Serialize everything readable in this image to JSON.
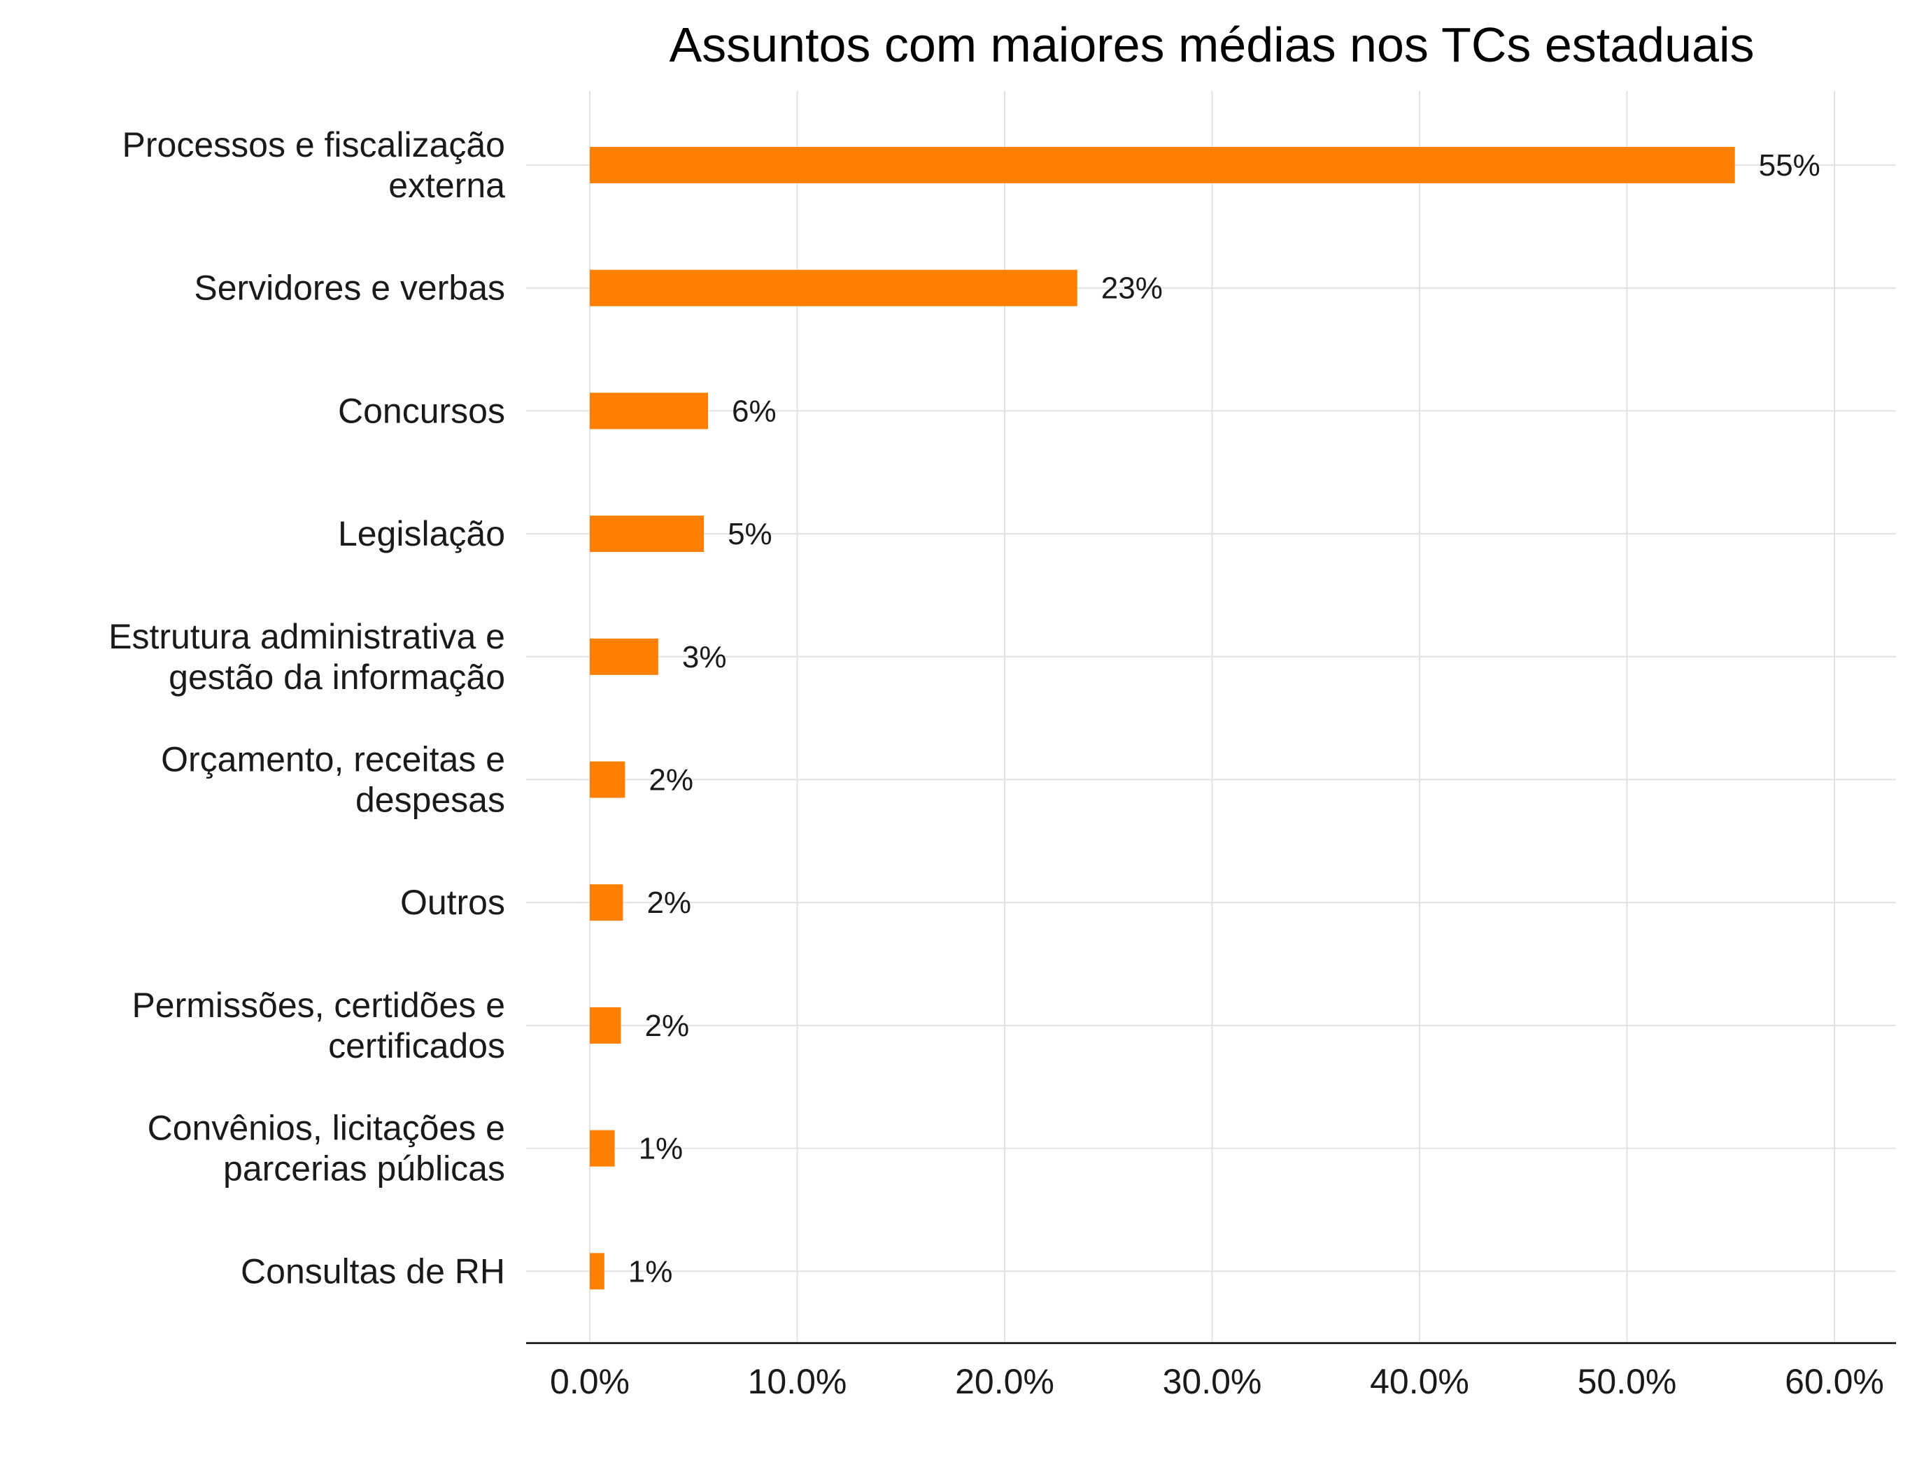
{
  "chart_data": {
    "type": "bar",
    "orientation": "horizontal",
    "title": "Assuntos com maiores médias nos TCs estaduais",
    "xlabel": "",
    "ylabel": "",
    "categories": [
      [
        "Processos e fiscalização",
        "externa"
      ],
      [
        "Servidores e verbas"
      ],
      [
        "Concursos"
      ],
      [
        "Legislação"
      ],
      [
        "Estrutura administrativa e",
        "gestão da informação"
      ],
      [
        "Orçamento, receitas e",
        "despesas"
      ],
      [
        "Outros"
      ],
      [
        "Permissões, certidões e",
        "certificados"
      ],
      [
        "Convênios, licitações e",
        "parcerias públicas"
      ],
      [
        "Consultas de RH"
      ]
    ],
    "values": [
      55.2,
      23.5,
      5.7,
      5.5,
      3.3,
      1.7,
      1.6,
      1.5,
      1.2,
      0.7
    ],
    "data_labels": [
      "55%",
      "23%",
      "6%",
      "5%",
      "3%",
      "2%",
      "2%",
      "2%",
      "1%",
      "1%"
    ],
    "xlim": [
      0,
      60
    ],
    "xticks": [
      0,
      10,
      20,
      30,
      40,
      50,
      60
    ],
    "xtick_labels": [
      "0.0%",
      "10.0%",
      "20.0%",
      "30.0%",
      "40.0%",
      "50.0%",
      "60.0%"
    ],
    "bar_color": "#ff8000",
    "grid": true,
    "legend": "none"
  }
}
